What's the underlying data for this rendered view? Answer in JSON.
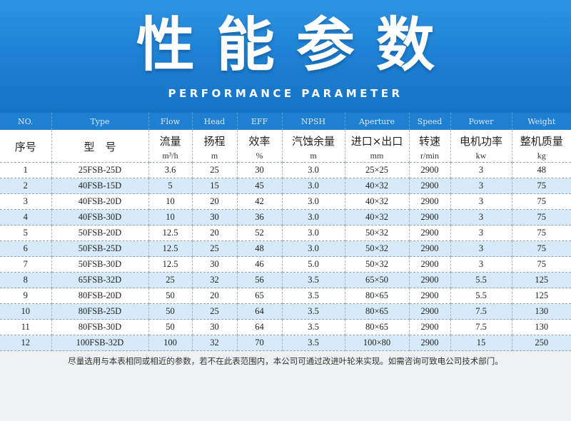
{
  "banner": {
    "title": "性能参数",
    "subtitle": "PERFORMANCE PARAMETER"
  },
  "columns": [
    {
      "en": "NO.",
      "zh": "序号",
      "unit": ""
    },
    {
      "en": "Type",
      "zh": "型　号",
      "unit": ""
    },
    {
      "en": "Flow",
      "zh": "流量",
      "unit": "m³/h"
    },
    {
      "en": "Head",
      "zh": "扬程",
      "unit": "m"
    },
    {
      "en": "EFF",
      "zh": "效率",
      "unit": "%"
    },
    {
      "en": "NPSH",
      "zh": "汽蚀余量",
      "unit": "m"
    },
    {
      "en": "Aperture",
      "zh": "进口×出口",
      "unit": "mm"
    },
    {
      "en": "Speed",
      "zh": "转速",
      "unit": "r/min"
    },
    {
      "en": "Power",
      "zh": "电机功率",
      "unit": "kw"
    },
    {
      "en": "Weight",
      "zh": "整机质量",
      "unit": "kg"
    }
  ],
  "rows": [
    [
      "1",
      "25FSB-25D",
      "3.6",
      "25",
      "30",
      "3.0",
      "25×25",
      "2900",
      "3",
      "48"
    ],
    [
      "2",
      "40FSB-15D",
      "5",
      "15",
      "45",
      "3.0",
      "40×32",
      "2900",
      "3",
      "75"
    ],
    [
      "3",
      "40FSB-20D",
      "10",
      "20",
      "42",
      "3.0",
      "40×32",
      "2900",
      "3",
      "75"
    ],
    [
      "4",
      "40FSB-30D",
      "10",
      "30",
      "36",
      "3.0",
      "40×32",
      "2900",
      "3",
      "75"
    ],
    [
      "5",
      "50FSB-20D",
      "12.5",
      "20",
      "52",
      "3.0",
      "50×32",
      "2900",
      "3",
      "75"
    ],
    [
      "6",
      "50FSB-25D",
      "12.5",
      "25",
      "48",
      "3.0",
      "50×32",
      "2900",
      "3",
      "75"
    ],
    [
      "7",
      "50FSB-30D",
      "12.5",
      "30",
      "46",
      "5.0",
      "50×32",
      "2900",
      "3",
      "75"
    ],
    [
      "8",
      "65FSB-32D",
      "25",
      "32",
      "56",
      "3.5",
      "65×50",
      "2900",
      "5.5",
      "125"
    ],
    [
      "9",
      "80FSB-20D",
      "50",
      "20",
      "65",
      "3.5",
      "80×65",
      "2900",
      "5.5",
      "125"
    ],
    [
      "10",
      "80FSB-25D",
      "50",
      "25",
      "64",
      "3.5",
      "80×65",
      "2900",
      "7.5",
      "130"
    ],
    [
      "11",
      "80FSB-30D",
      "50",
      "30",
      "64",
      "3.5",
      "80×65",
      "2900",
      "7.5",
      "130"
    ],
    [
      "12",
      "100FSB-32D",
      "100",
      "32",
      "70",
      "3.5",
      "100×80",
      "2900",
      "15",
      "250"
    ]
  ],
  "note": "尽量选用与本表相同或相近的参数，若不在此表范围内，本公司可通过改进叶轮来实现。如需咨询可致电公司技术部门。",
  "colors": {
    "banner": "#1f82d4",
    "header_bar": "#1f7fd0",
    "row_alt": "#d6eaf9"
  }
}
